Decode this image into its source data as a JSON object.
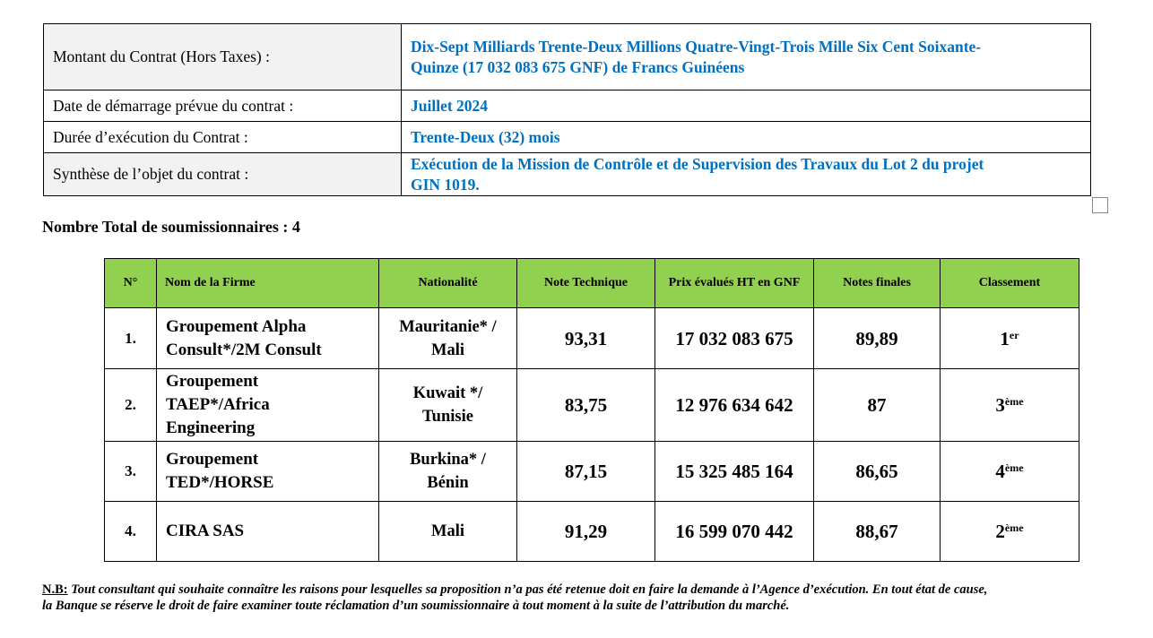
{
  "contract_info": {
    "amount_label": "Montant du Contrat (Hors Taxes) :",
    "amount_value_line1": "Dix-Sept Milliards Trente-Deux Millions Quatre-Vingt-Trois Mille Six Cent Soixante-",
    "amount_value_line2": "Quinze (17 032 083 675 GNF) de Francs Guinéens",
    "start_label": "Date de démarrage prévue du contrat :",
    "start_value": "Juillet 2024",
    "duration_label": "Durée d’exécution du Contrat :",
    "duration_value": "Trente-Deux (32) mois",
    "object_label": "Synthèse de l’objet du contrat :",
    "object_value_line1": "Exécution de la Mission de Contrôle et de Supervision des Travaux du Lot 2 du projet",
    "object_value_line2": "GIN 1019."
  },
  "bidders_total": "Nombre Total de soumissionnaires : 4",
  "results": {
    "headers": [
      "N°",
      "Nom de la Firme",
      "Nationalité",
      "Note Technique",
      "Prix évalués HT en GNF",
      "Notes finales",
      "Classement"
    ],
    "rows": [
      {
        "no": "1.",
        "firm_lines": [
          "Groupement Alpha",
          "Consult*/2M Consult"
        ],
        "nat_lines": [
          "Mauritanie* /",
          "Mali"
        ],
        "tech": "93,31",
        "price": "17 032 083 675",
        "final": "89,89",
        "rank_num": "1",
        "rank_sup": "er"
      },
      {
        "no": "2.",
        "firm_lines": [
          "Groupement",
          "TAEP*/Africa",
          "Engineering"
        ],
        "nat_lines": [
          "Kuwait */",
          "Tunisie"
        ],
        "tech": "83,75",
        "price": "12 976 634 642",
        "final": "87",
        "rank_num": "3",
        "rank_sup": "ème"
      },
      {
        "no": "3.",
        "firm_lines": [
          "Groupement",
          "TED*/HORSE"
        ],
        "nat_lines": [
          "Burkina* /",
          "Bénin"
        ],
        "tech": "87,15",
        "price": "15 325 485 164",
        "final": "86,65",
        "rank_num": "4",
        "rank_sup": "ème"
      },
      {
        "no": "4.",
        "firm_lines": [
          "CIRA SAS"
        ],
        "nat_lines": [
          "Mali"
        ],
        "tech": "91,29",
        "price": "16 599 070 442",
        "final": "88,67",
        "rank_num": "2",
        "rank_sup": "ème"
      }
    ]
  },
  "note": {
    "prefix": "N.B:",
    "line1": " Tout consultant qui souhaite connaître les raisons pour lesquelles sa proposition n’a pas été retenue doit en faire la demande à l’Agence d’exécution. En tout état de cause,",
    "line2": "la Banque se réserve le droit de faire examiner toute réclamation d’un soumissionnaire à tout moment à la suite de l’attribution du marché."
  },
  "colors": {
    "header_green": "#92d050",
    "value_blue": "#0070c0",
    "label_shade": "#f2f2f2"
  }
}
